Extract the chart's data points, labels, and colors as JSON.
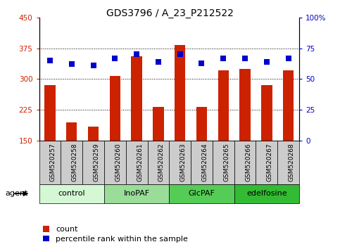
{
  "title": "GDS3796 / A_23_P212522",
  "samples": [
    "GSM520257",
    "GSM520258",
    "GSM520259",
    "GSM520260",
    "GSM520261",
    "GSM520262",
    "GSM520263",
    "GSM520264",
    "GSM520265",
    "GSM520266",
    "GSM520267",
    "GSM520268"
  ],
  "counts": [
    285,
    195,
    185,
    308,
    355,
    232,
    382,
    232,
    322,
    325,
    285,
    322
  ],
  "percentiles": [
    65,
    62,
    61,
    67,
    70,
    64,
    70,
    63,
    67,
    67,
    64,
    67
  ],
  "groups": [
    {
      "label": "control",
      "start": 0,
      "end": 3,
      "color": "#d4f7d4"
    },
    {
      "label": "InoPAF",
      "start": 3,
      "end": 6,
      "color": "#99dd99"
    },
    {
      "label": "GlcPAF",
      "start": 6,
      "end": 9,
      "color": "#55cc55"
    },
    {
      "label": "edelfosine",
      "start": 9,
      "end": 12,
      "color": "#33bb33"
    }
  ],
  "ylim_left": [
    150,
    450
  ],
  "ylim_right": [
    0,
    100
  ],
  "yticks_left": [
    150,
    225,
    300,
    375,
    450
  ],
  "yticks_right": [
    0,
    25,
    50,
    75,
    100
  ],
  "bar_color": "#cc2200",
  "dot_color": "#0000cc",
  "bar_width": 0.5,
  "dot_size": 35,
  "agent_label": "agent",
  "legend_count": "count",
  "legend_percentile": "percentile rank within the sample",
  "left_tick_color": "#cc2200",
  "right_tick_color": "#0000cc",
  "title_fontsize": 10,
  "tick_fontsize": 7.5,
  "label_fontsize": 8,
  "sample_fontsize": 6.5,
  "group_fontsize": 8
}
